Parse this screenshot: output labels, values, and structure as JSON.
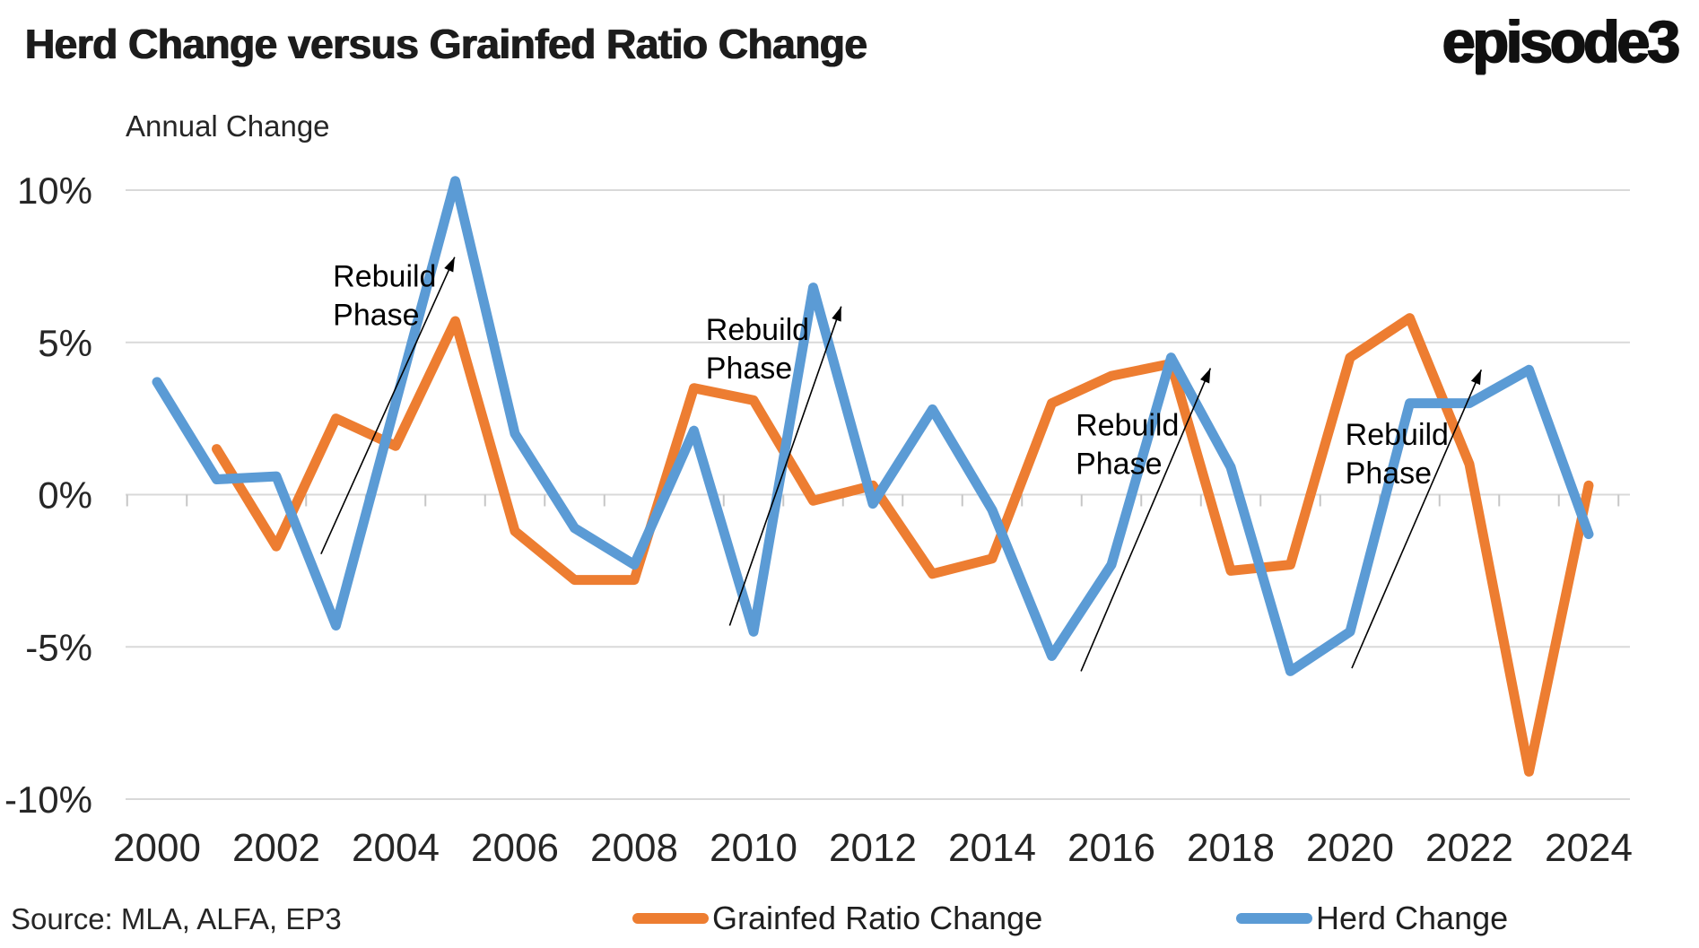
{
  "header": {
    "title": "Herd Change versus Grainfed Ratio Change",
    "logo_text": "episode3"
  },
  "chart_data": {
    "type": "line",
    "title": "Herd Change versus Grainfed Ratio Change",
    "axis_label": "Annual Change",
    "x": [
      2000,
      2001,
      2002,
      2003,
      2004,
      2005,
      2006,
      2007,
      2008,
      2009,
      2010,
      2011,
      2012,
      2013,
      2014,
      2015,
      2016,
      2017,
      2018,
      2019,
      2020,
      2021,
      2022,
      2023,
      2024
    ],
    "x_tick_labels": [
      "2000",
      "2002",
      "2004",
      "2006",
      "2008",
      "2010",
      "2012",
      "2014",
      "2016",
      "2018",
      "2020",
      "2022",
      "2024"
    ],
    "y_ticks": [
      10,
      5,
      0,
      -5,
      -10
    ],
    "y_tick_labels": [
      "10%",
      "5%",
      "0%",
      "-5%",
      "-10%"
    ],
    "ylim": [
      -10.5,
      11.5
    ],
    "grid": "horizontal",
    "legend_position": "bottom-center",
    "colors": {
      "grid": "#d9d9d9",
      "axis": "#c6c6c6",
      "tick_text": "#262626",
      "annotation": "#000000"
    },
    "series": [
      {
        "name": "Grainfed Ratio Change",
        "color": "#ED7D31",
        "values": [
          null,
          1.5,
          -1.7,
          2.5,
          1.6,
          5.7,
          -1.2,
          -2.8,
          -2.8,
          3.5,
          3.1,
          -0.2,
          0.3,
          -2.6,
          -2.1,
          3.0,
          3.9,
          4.3,
          -2.5,
          -2.3,
          4.5,
          5.8,
          1.0,
          -9.1,
          0.3
        ]
      },
      {
        "name": "Herd Change",
        "color": "#5B9BD5",
        "values": [
          3.7,
          0.5,
          0.6,
          -4.3,
          3.0,
          10.3,
          2.0,
          -1.1,
          -2.3,
          2.1,
          -4.5,
          6.8,
          -0.3,
          2.8,
          -0.5,
          -5.3,
          -2.3,
          4.5,
          0.9,
          -5.8,
          -4.5,
          3.0,
          3.0,
          4.1,
          -1.3
        ]
      }
    ],
    "annotations": [
      {
        "text_lines": [
          "Rebuild",
          "Phase"
        ],
        "text_at": {
          "year": 2002.95,
          "value": 7.75
        },
        "arrow": {
          "from": {
            "year": 2002.75,
            "value": -1.95
          },
          "to": {
            "year": 2004.99,
            "value": 7.8
          }
        }
      },
      {
        "text_lines": [
          "Rebuild",
          "Phase"
        ],
        "text_at": {
          "year": 2009.2,
          "value": 6.0
        },
        "arrow": {
          "from": {
            "year": 2009.6,
            "value": -4.3
          },
          "to": {
            "year": 2011.47,
            "value": 6.18
          }
        }
      },
      {
        "text_lines": [
          "Rebuild",
          "Phase"
        ],
        "text_at": {
          "year": 2015.4,
          "value": 2.85
        },
        "arrow": {
          "from": {
            "year": 2015.49,
            "value": -5.8
          },
          "to": {
            "year": 2017.66,
            "value": 4.15
          }
        }
      },
      {
        "text_lines": [
          "Rebuild",
          "Phase"
        ],
        "text_at": {
          "year": 2019.92,
          "value": 2.55
        },
        "arrow": {
          "from": {
            "year": 2020.03,
            "value": -5.7
          },
          "to": {
            "year": 2022.2,
            "value": 4.1
          }
        }
      }
    ]
  },
  "legend": {
    "items": [
      {
        "label": "Grainfed Ratio Change",
        "color": "#ED7D31"
      },
      {
        "label": "Herd Change",
        "color": "#5B9BD5"
      }
    ]
  },
  "footer": {
    "source": "Source: MLA, ALFA, EP3"
  }
}
